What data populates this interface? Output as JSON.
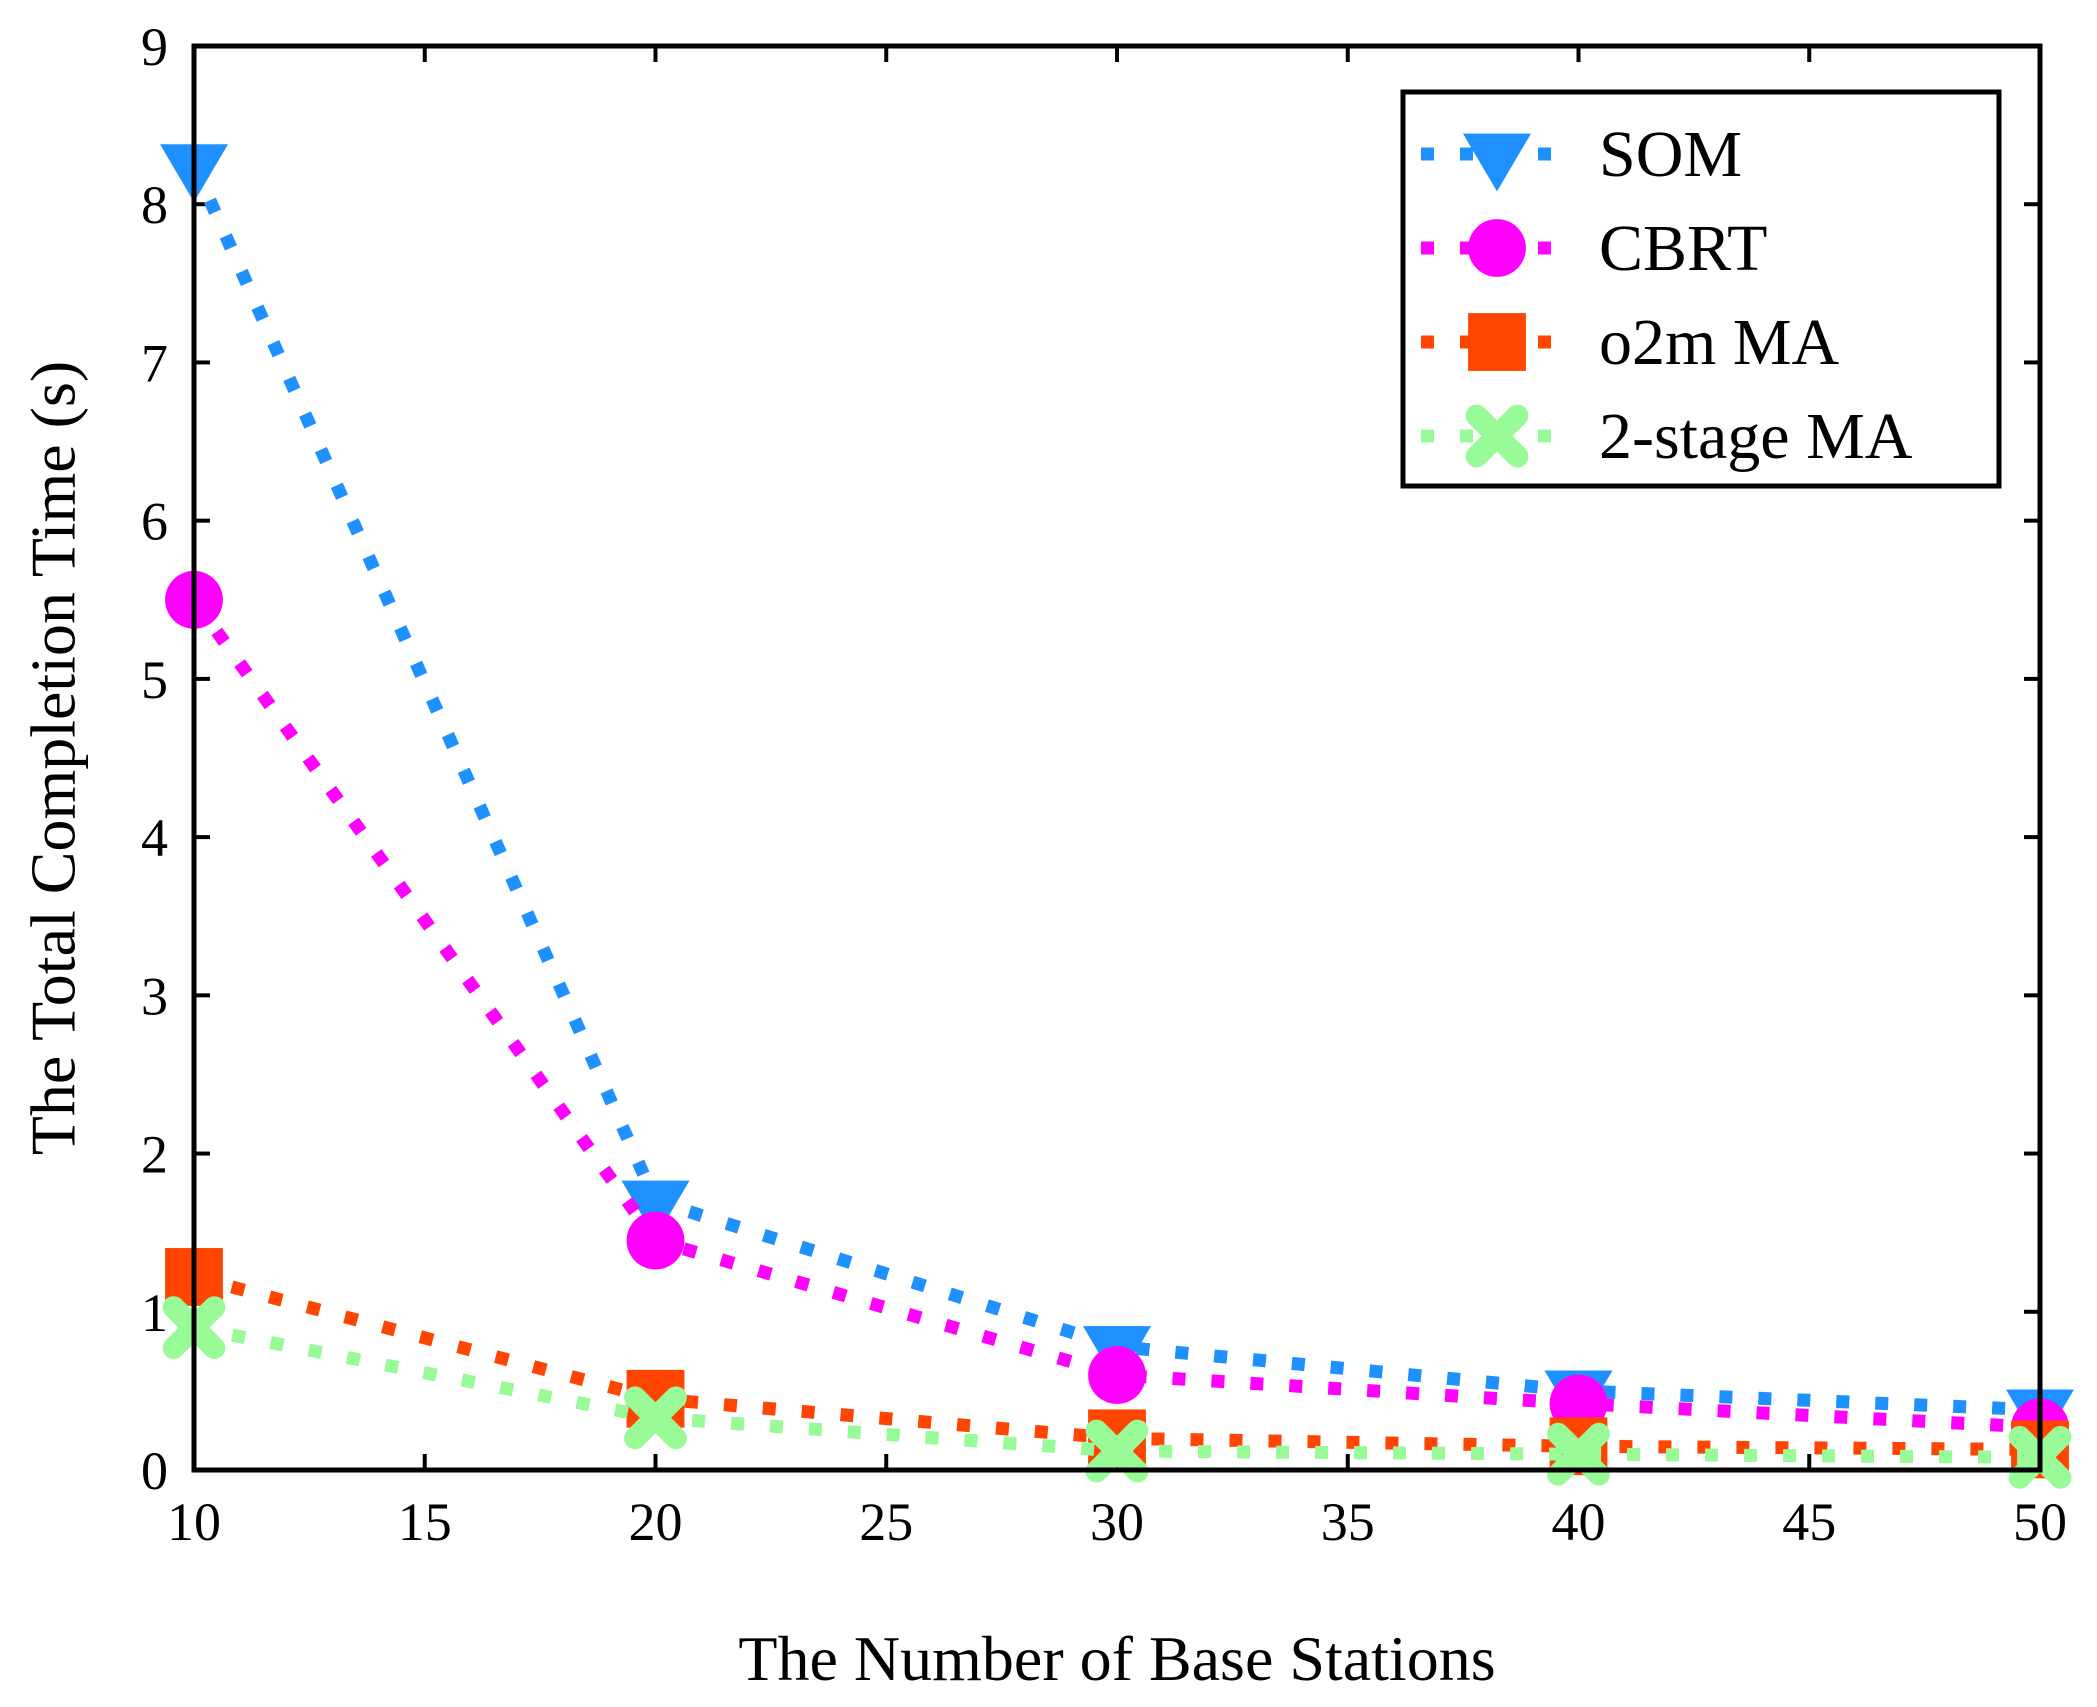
{
  "chart_data": {
    "type": "line",
    "xlabel": "The Number of Base Stations",
    "ylabel": "The Total Completion Time (s)",
    "xlim": [
      10,
      50
    ],
    "ylim": [
      0,
      9
    ],
    "xticks": [
      10,
      15,
      20,
      25,
      30,
      35,
      40,
      45,
      50
    ],
    "yticks": [
      0,
      1,
      2,
      3,
      4,
      5,
      6,
      7,
      8,
      9
    ],
    "grid": false,
    "legend_position": "top-right",
    "x": [
      10,
      20,
      30,
      40,
      50
    ],
    "series": [
      {
        "name": "SOM",
        "values": [
          8.25,
          1.7,
          0.78,
          0.5,
          0.38
        ],
        "color": "#1E90FF",
        "marker": "triangle-down"
      },
      {
        "name": "CBRT",
        "values": [
          5.5,
          1.45,
          0.6,
          0.42,
          0.27
        ],
        "color": "#FF00FF",
        "marker": "circle"
      },
      {
        "name": "o2m MA",
        "values": [
          1.22,
          0.45,
          0.2,
          0.15,
          0.13
        ],
        "color": "#FF4500",
        "marker": "square"
      },
      {
        "name": "2-stage MA",
        "values": [
          0.9,
          0.33,
          0.12,
          0.1,
          0.08
        ],
        "color": "#98FB98",
        "marker": "x"
      }
    ]
  }
}
